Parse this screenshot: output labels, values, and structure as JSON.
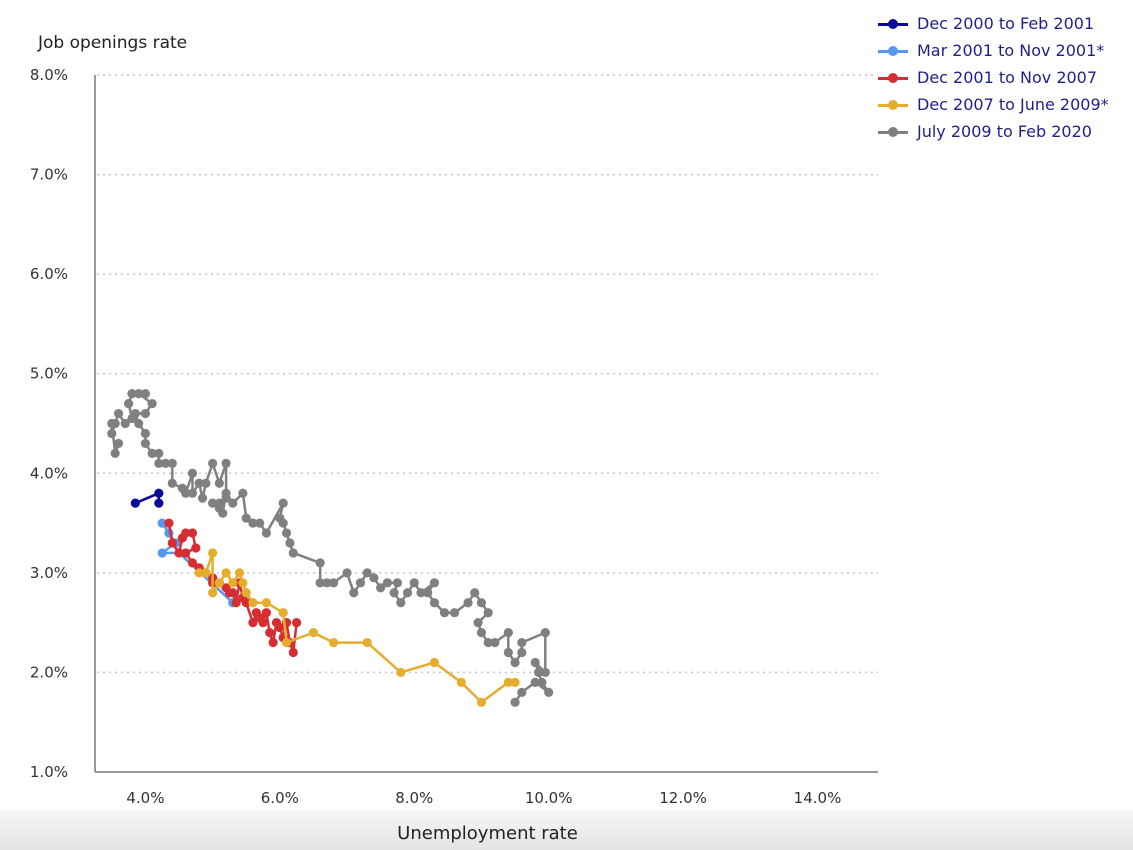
{
  "chart_data": {
    "type": "scatter",
    "title": "",
    "xlabel": "Unemployment rate",
    "ylabel": "Job openings rate",
    "xlim": [
      3.25,
      14.9
    ],
    "ylim": [
      1.0,
      8.0
    ],
    "x_ticks": [
      "4.0%",
      "6.0%",
      "8.0%",
      "10.0%",
      "12.0%",
      "14.0%"
    ],
    "y_ticks": [
      "1.0%",
      "2.0%",
      "3.0%",
      "4.0%",
      "5.0%",
      "6.0%",
      "7.0%",
      "8.0%"
    ],
    "grid": "horizontal dotted",
    "legend_position": "top-right",
    "series": [
      {
        "name": "Dec 2000 to Feb 2001",
        "color": "#0a0a9a",
        "points": [
          [
            3.85,
            3.7
          ],
          [
            4.2,
            3.8
          ],
          [
            4.2,
            3.7
          ]
        ]
      },
      {
        "name": "Mar 2001 to Nov 2001*",
        "color": "#5599ee",
        "points": [
          [
            4.25,
            3.5
          ],
          [
            4.35,
            3.4
          ],
          [
            4.45,
            3.3
          ],
          [
            4.25,
            3.2
          ],
          [
            4.5,
            3.2
          ],
          [
            5.3,
            2.7
          ]
        ]
      },
      {
        "name": "Dec 2001 to Nov 2007",
        "color": "#d62d32",
        "points": [
          [
            4.35,
            3.5
          ],
          [
            4.4,
            3.3
          ],
          [
            4.5,
            3.2
          ],
          [
            4.55,
            3.35
          ],
          [
            4.6,
            3.4
          ],
          [
            4.7,
            3.4
          ],
          [
            4.75,
            3.25
          ],
          [
            4.6,
            3.2
          ],
          [
            4.7,
            3.1
          ],
          [
            4.8,
            3.05
          ],
          [
            4.9,
            3.0
          ],
          [
            5.0,
            2.95
          ],
          [
            5.0,
            2.9
          ],
          [
            5.1,
            2.9
          ],
          [
            5.2,
            2.85
          ],
          [
            5.25,
            2.8
          ],
          [
            5.3,
            2.8
          ],
          [
            5.35,
            2.7
          ],
          [
            5.4,
            2.9
          ],
          [
            5.45,
            2.75
          ],
          [
            5.5,
            2.7
          ],
          [
            5.6,
            2.5
          ],
          [
            5.65,
            2.6
          ],
          [
            5.7,
            2.55
          ],
          [
            5.75,
            2.5
          ],
          [
            5.8,
            2.6
          ],
          [
            5.85,
            2.4
          ],
          [
            5.9,
            2.3
          ],
          [
            5.95,
            2.5
          ],
          [
            6.0,
            2.45
          ],
          [
            6.05,
            2.35
          ],
          [
            6.1,
            2.5
          ],
          [
            6.15,
            2.3
          ],
          [
            6.2,
            2.2
          ],
          [
            6.25,
            2.5
          ]
        ]
      },
      {
        "name": "Dec 2007 to June 2009*",
        "color": "#e4ad2c",
        "points": [
          [
            4.8,
            3.0
          ],
          [
            4.9,
            3.0
          ],
          [
            5.0,
            3.2
          ],
          [
            5.0,
            2.8
          ],
          [
            5.1,
            2.9
          ],
          [
            5.2,
            3.0
          ],
          [
            5.3,
            2.9
          ],
          [
            5.4,
            3.0
          ],
          [
            5.45,
            2.9
          ],
          [
            5.5,
            2.8
          ],
          [
            5.6,
            2.7
          ],
          [
            5.8,
            2.7
          ],
          [
            6.05,
            2.6
          ],
          [
            6.1,
            2.3
          ],
          [
            6.5,
            2.4
          ],
          [
            6.8,
            2.3
          ],
          [
            7.3,
            2.3
          ],
          [
            7.8,
            2.0
          ],
          [
            8.3,
            2.1
          ],
          [
            8.7,
            1.9
          ],
          [
            9.0,
            1.7
          ],
          [
            9.4,
            1.9
          ],
          [
            9.5,
            1.9
          ]
        ]
      },
      {
        "name": "July 2009 to Feb 2020",
        "color": "#808080",
        "points": [
          [
            9.5,
            1.7
          ],
          [
            9.6,
            1.8
          ],
          [
            9.8,
            1.9
          ],
          [
            10.0,
            1.8
          ],
          [
            9.9,
            1.9
          ],
          [
            9.85,
            2.0
          ],
          [
            9.8,
            2.1
          ],
          [
            9.95,
            2.0
          ],
          [
            9.95,
            2.4
          ],
          [
            9.6,
            2.3
          ],
          [
            9.6,
            2.2
          ],
          [
            9.5,
            2.1
          ],
          [
            9.4,
            2.2
          ],
          [
            9.4,
            2.4
          ],
          [
            9.2,
            2.3
          ],
          [
            9.1,
            2.3
          ],
          [
            9.0,
            2.4
          ],
          [
            8.95,
            2.5
          ],
          [
            9.1,
            2.6
          ],
          [
            9.0,
            2.7
          ],
          [
            8.9,
            2.8
          ],
          [
            8.8,
            2.7
          ],
          [
            8.6,
            2.6
          ],
          [
            8.45,
            2.6
          ],
          [
            8.3,
            2.7
          ],
          [
            8.2,
            2.8
          ],
          [
            8.3,
            2.9
          ],
          [
            8.1,
            2.8
          ],
          [
            8.0,
            2.9
          ],
          [
            7.9,
            2.8
          ],
          [
            7.8,
            2.7
          ],
          [
            7.7,
            2.8
          ],
          [
            7.75,
            2.9
          ],
          [
            7.6,
            2.9
          ],
          [
            7.5,
            2.85
          ],
          [
            7.4,
            2.95
          ],
          [
            7.3,
            3.0
          ],
          [
            7.2,
            2.9
          ],
          [
            7.1,
            2.8
          ],
          [
            7.0,
            3.0
          ],
          [
            6.8,
            2.9
          ],
          [
            6.7,
            2.9
          ],
          [
            6.6,
            2.9
          ],
          [
            6.6,
            3.1
          ],
          [
            6.2,
            3.2
          ],
          [
            6.15,
            3.3
          ],
          [
            6.1,
            3.4
          ],
          [
            6.05,
            3.5
          ],
          [
            6.0,
            3.55
          ],
          [
            6.05,
            3.7
          ],
          [
            5.8,
            3.4
          ],
          [
            5.7,
            3.5
          ],
          [
            5.6,
            3.5
          ],
          [
            5.5,
            3.55
          ],
          [
            5.45,
            3.8
          ],
          [
            5.3,
            3.7
          ],
          [
            5.2,
            3.8
          ],
          [
            5.15,
            3.6
          ],
          [
            5.1,
            3.7
          ],
          [
            5.0,
            3.7
          ],
          [
            5.1,
            3.65
          ],
          [
            5.2,
            3.75
          ],
          [
            5.2,
            4.1
          ],
          [
            5.1,
            3.9
          ],
          [
            5.0,
            4.1
          ],
          [
            4.9,
            3.9
          ],
          [
            4.85,
            3.75
          ],
          [
            4.8,
            3.9
          ],
          [
            4.7,
            3.8
          ],
          [
            4.7,
            4.0
          ],
          [
            4.6,
            3.8
          ],
          [
            4.55,
            3.85
          ],
          [
            4.4,
            3.9
          ],
          [
            4.4,
            4.1
          ],
          [
            4.3,
            4.1
          ],
          [
            4.2,
            4.1
          ],
          [
            4.2,
            4.2
          ],
          [
            4.1,
            4.2
          ],
          [
            4.0,
            4.3
          ],
          [
            4.0,
            4.4
          ],
          [
            3.9,
            4.5
          ],
          [
            3.85,
            4.6
          ],
          [
            4.0,
            4.6
          ],
          [
            4.1,
            4.7
          ],
          [
            3.9,
            4.8
          ],
          [
            4.0,
            4.8
          ],
          [
            3.8,
            4.8
          ],
          [
            3.75,
            4.7
          ],
          [
            3.8,
            4.55
          ],
          [
            3.7,
            4.5
          ],
          [
            3.6,
            4.6
          ],
          [
            3.55,
            4.5
          ],
          [
            3.5,
            4.4
          ],
          [
            3.5,
            4.5
          ],
          [
            3.55,
            4.2
          ],
          [
            3.6,
            4.3
          ]
        ]
      }
    ]
  }
}
